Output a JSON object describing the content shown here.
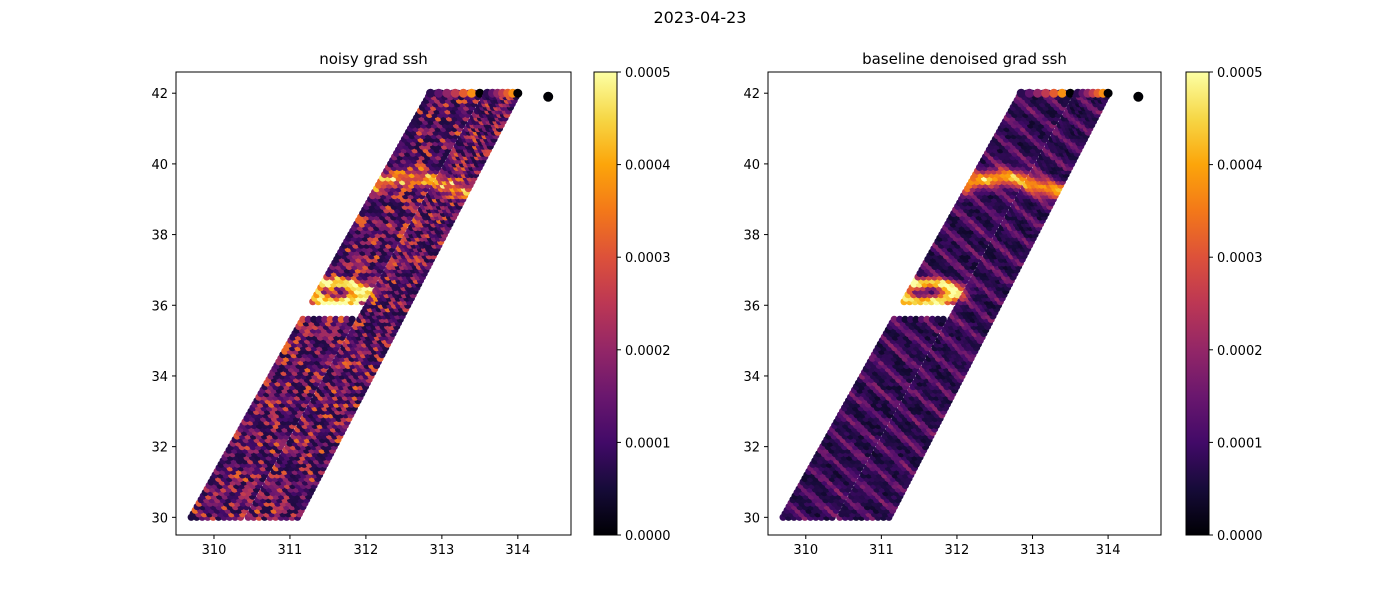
{
  "figure": {
    "suptitle": "2023-04-23"
  },
  "chart_data": [
    {
      "type": "scatter",
      "title": "noisy grad ssh",
      "xlabel": "",
      "ylabel": "",
      "xlim": [
        309.5,
        314.7
      ],
      "ylim": [
        29.5,
        42.6
      ],
      "xticks": [
        310,
        311,
        312,
        313,
        314
      ],
      "yticks": [
        30,
        32,
        34,
        36,
        38,
        40,
        42
      ],
      "colormap": "inferno",
      "color_range": [
        0.0,
        0.0005
      ],
      "colorbar_ticks": [
        "0.0000",
        "0.0001",
        "0.0002",
        "0.0003",
        "0.0004",
        "0.0005"
      ],
      "swaths": [
        {
          "bottom_lon": [
            309.7,
            310.35
          ],
          "top_lon": [
            312.85,
            313.5
          ],
          "lat": [
            30,
            42
          ]
        },
        {
          "bottom_lon": [
            310.45,
            311.1
          ],
          "top_lon": [
            313.6,
            314.0
          ],
          "lat": [
            30,
            42
          ]
        }
      ],
      "gap_lat": [
        35.6,
        36.1
      ],
      "eddy": {
        "lon": 311.6,
        "lat": 36.4
      },
      "isolated_point": {
        "lon": 314.4,
        "lat": 41.9
      },
      "texture": "noisy"
    },
    {
      "type": "scatter",
      "title": "baseline denoised grad ssh",
      "xlabel": "",
      "ylabel": "",
      "xlim": [
        309.5,
        314.7
      ],
      "ylim": [
        29.5,
        42.6
      ],
      "xticks": [
        310,
        311,
        312,
        313,
        314
      ],
      "yticks": [
        30,
        32,
        34,
        36,
        38,
        40,
        42
      ],
      "colormap": "inferno",
      "color_range": [
        0.0,
        0.0005
      ],
      "colorbar_ticks": [
        "0.0000",
        "0.0001",
        "0.0002",
        "0.0003",
        "0.0004",
        "0.0005"
      ],
      "swaths": [
        {
          "bottom_lon": [
            309.7,
            310.35
          ],
          "top_lon": [
            312.85,
            313.5
          ],
          "lat": [
            30,
            42
          ]
        },
        {
          "bottom_lon": [
            310.45,
            311.1
          ],
          "top_lon": [
            313.6,
            314.0
          ],
          "lat": [
            30,
            42
          ]
        }
      ],
      "gap_lat": [
        35.6,
        36.1
      ],
      "eddy": {
        "lon": 311.6,
        "lat": 36.4
      },
      "isolated_point": {
        "lon": 314.4,
        "lat": 41.9
      },
      "texture": "smooth"
    }
  ]
}
